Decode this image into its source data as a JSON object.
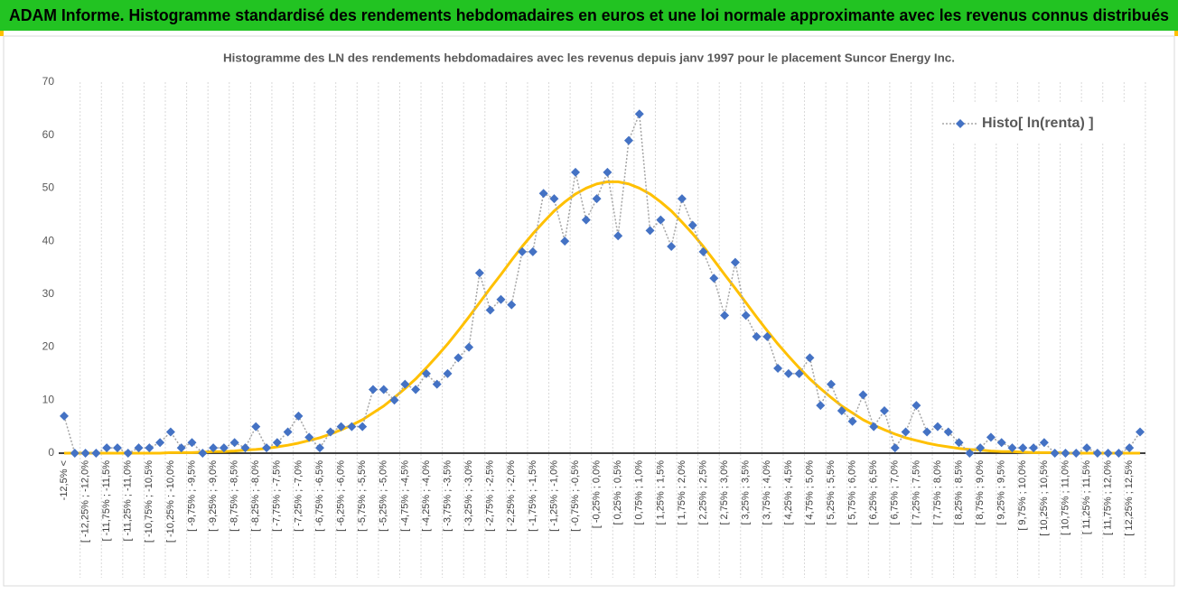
{
  "header": {
    "title": "ADAM Informe. Histogramme standardisé des rendements hebdomadaires en euros et une loi normale approximante avec les revenus connus distribués"
  },
  "chart_data": {
    "type": "line",
    "title": "Histogramme des LN des rendements hebdomadaires avec les revenus depuis janv 1997 pour le placement Suncor Energy Inc.",
    "categories": [
      "-12,5% <",
      null,
      "[ -12,25% ; -12,0%",
      null,
      "[ -11,75% ; -11,5%",
      null,
      "[ -11,25% ; -11,0%",
      null,
      "[ -10,75% ; -10,5%",
      null,
      "[ -10,25% ; -10,0%",
      null,
      "[ -9,75% ; -9,5%",
      null,
      "[ -9,25% ; -9,0%",
      null,
      "[ -8,75% ; -8,5%",
      null,
      "[ -8,25% ; -8,0%",
      null,
      "[ -7,75% ; -7,5%",
      null,
      "[ -7,25% ; -7,0%",
      null,
      "[ -6,75% ; -6,5%",
      null,
      "[ -6,25% ; -6,0%",
      null,
      "[ -5,75% ; -5,5%",
      null,
      "[ -5,25% ; -5,0%",
      null,
      "[ -4,75% ; -4,5%",
      null,
      "[ -4,25% ; -4,0%",
      null,
      "[ -3,75% ; -3,5%",
      null,
      "[ -3,25% ; -3,0%",
      null,
      "[ -2,75% ; -2,5%",
      null,
      "[ -2,25% ; -2,0%",
      null,
      "[ -1,75% ; -1,5%",
      null,
      "[ -1,25% ; -1,0%",
      null,
      "[ -0,75% ; -0,5%",
      null,
      "[ -0,25% ; 0,0%",
      null,
      "[ 0,25% ; 0,5%",
      null,
      "[ 0,75% ; 1,0%",
      null,
      "[ 1,25% ; 1,5%",
      null,
      "[ 1,75% ; 2,0%",
      null,
      "[ 2,25% ; 2,5%",
      null,
      "[ 2,75% ; 3,0%",
      null,
      "[ 3,25% ; 3,5%",
      null,
      "[ 3,75% ; 4,0%",
      null,
      "[ 4,25% ; 4,5%",
      null,
      "[ 4,75% ; 5,0%",
      null,
      "[ 5,25% ; 5,5%",
      null,
      "[ 5,75% ; 6,0%",
      null,
      "[ 6,25% ; 6,5%",
      null,
      "[ 6,75% ; 7,0%",
      null,
      "[ 7,25% ; 7,5%",
      null,
      "[ 7,75% ; 8,0%",
      null,
      "[ 8,25% ; 8,5%",
      null,
      "[ 8,75% ; 9,0%",
      null,
      "[ 9,25% ; 9,5%",
      null,
      "[ 9,75% ; 10,0%",
      null,
      "[ 10,25% ; 10,5%",
      null,
      "[ 10,75% ; 11,0%",
      null,
      "[ 11,25% ; 11,5%",
      null,
      "[ 11,75% ; 12,0%",
      null,
      "[ 12,25% ; 12,5%",
      null
    ],
    "series": [
      {
        "name": "Histo[ ln(renta) ]",
        "color": "#4472c4",
        "line_color": "#a5a5a5",
        "line_style": "dotted",
        "marker": "diamond",
        "values": [
          7,
          0,
          0,
          0,
          1,
          1,
          0,
          1,
          1,
          2,
          4,
          1,
          2,
          0,
          1,
          1,
          2,
          1,
          5,
          1,
          2,
          4,
          7,
          3,
          1,
          4,
          5,
          5,
          5,
          12,
          12,
          10,
          13,
          12,
          15,
          13,
          15,
          18,
          20,
          34,
          27,
          29,
          28,
          38,
          38,
          49,
          48,
          40,
          53,
          44,
          48,
          53,
          41,
          59,
          64,
          42,
          44,
          39,
          48,
          43,
          38,
          33,
          26,
          36,
          26,
          22,
          22,
          16,
          15,
          15,
          18,
          9,
          13,
          8,
          6,
          11,
          5,
          8,
          1,
          4,
          9,
          4,
          5,
          4,
          2,
          0,
          1,
          3,
          2,
          1,
          1,
          1,
          2,
          0,
          0,
          0,
          1,
          0,
          0,
          0,
          1,
          4
        ]
      },
      {
        "color": "#ffc000",
        "marker": "none",
        "values": [
          0,
          0,
          0,
          0,
          0,
          0,
          0,
          0,
          0,
          0,
          0.1,
          0.1,
          0.1,
          0.2,
          0.3,
          0.3,
          0.4,
          0.6,
          0.7,
          0.9,
          1.2,
          1.5,
          1.9,
          2.4,
          2.9,
          3.6,
          4.4,
          5.3,
          6.3,
          7.6,
          8.9,
          10.5,
          12.2,
          14.0,
          16.1,
          18.3,
          20.6,
          23.1,
          25.7,
          28.4,
          31.1,
          33.7,
          36.4,
          39.0,
          41.4,
          43.6,
          45.7,
          47.4,
          48.9,
          50.0,
          50.8,
          51.2,
          51.2,
          50.8,
          50.0,
          48.9,
          47.4,
          45.7,
          43.6,
          41.4,
          39.0,
          36.4,
          33.7,
          31.1,
          28.4,
          25.7,
          23.1,
          20.6,
          18.3,
          16.1,
          14.0,
          12.2,
          10.5,
          8.9,
          7.6,
          6.3,
          5.3,
          4.4,
          3.6,
          2.9,
          2.4,
          1.9,
          1.5,
          1.2,
          0.9,
          0.7,
          0.6,
          0.4,
          0.3,
          0.3,
          0.2,
          0.1,
          0.1,
          0.1,
          0,
          0,
          0,
          0,
          0,
          0,
          0,
          0
        ]
      }
    ],
    "ylim": [
      0,
      70
    ],
    "yticks": [
      0,
      10,
      20,
      30,
      40,
      50,
      60,
      70
    ],
    "grid": false,
    "xgrid": true,
    "legend": "upper right"
  }
}
